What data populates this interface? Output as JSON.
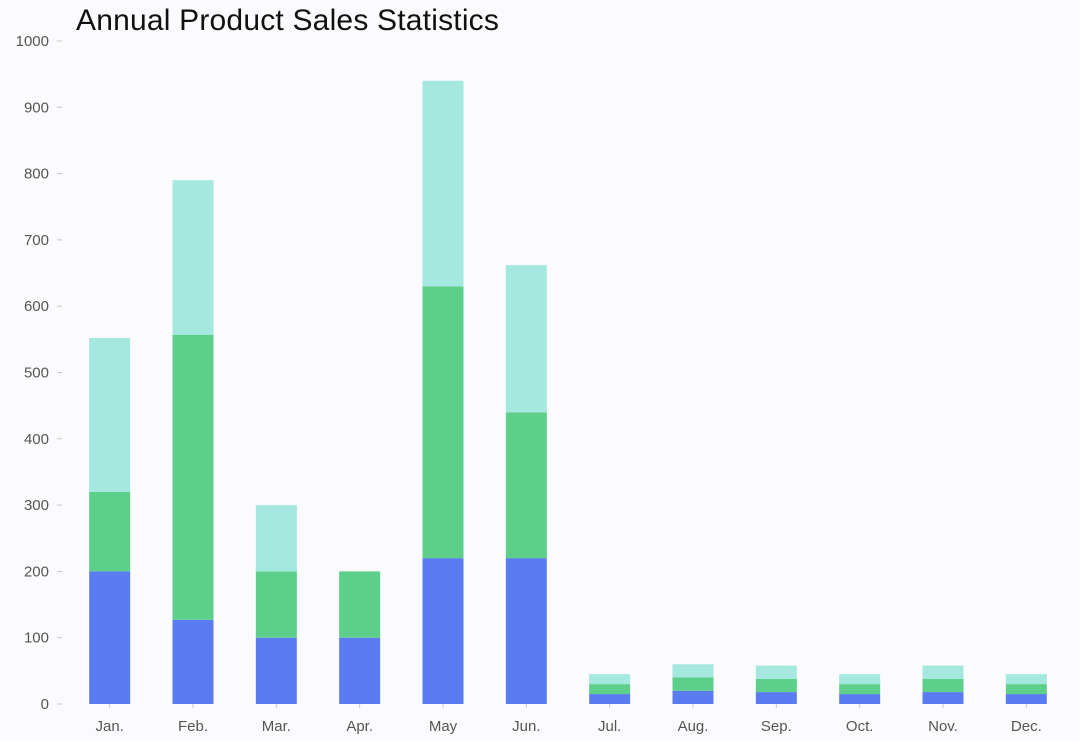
{
  "chart_data": {
    "type": "bar",
    "stacked": true,
    "title": "Annual Product Sales Statistics",
    "xlabel": "",
    "ylabel": "",
    "ylim": [
      0,
      1000
    ],
    "yticks": [
      0,
      100,
      200,
      300,
      400,
      500,
      600,
      700,
      800,
      900,
      1000
    ],
    "grid": false,
    "legend": "none",
    "categories": [
      "Jan.",
      "Feb.",
      "Mar.",
      "Apr.",
      "May",
      "Jun.",
      "Jul.",
      "Aug.",
      "Sep.",
      "Oct.",
      "Nov.",
      "Dec."
    ],
    "series": [
      {
        "color": "#5b7cf0",
        "values": [
          200,
          127,
          100,
          100,
          220,
          220,
          15,
          20,
          18,
          15,
          18,
          15
        ]
      },
      {
        "color": "#5ccf8a",
        "values": [
          120,
          430,
          100,
          100,
          410,
          220,
          15,
          20,
          20,
          15,
          20,
          15
        ]
      },
      {
        "color": "#a4e8e0",
        "values": [
          232,
          233,
          100,
          0,
          310,
          222,
          15,
          20,
          20,
          15,
          20,
          15
        ]
      }
    ]
  }
}
